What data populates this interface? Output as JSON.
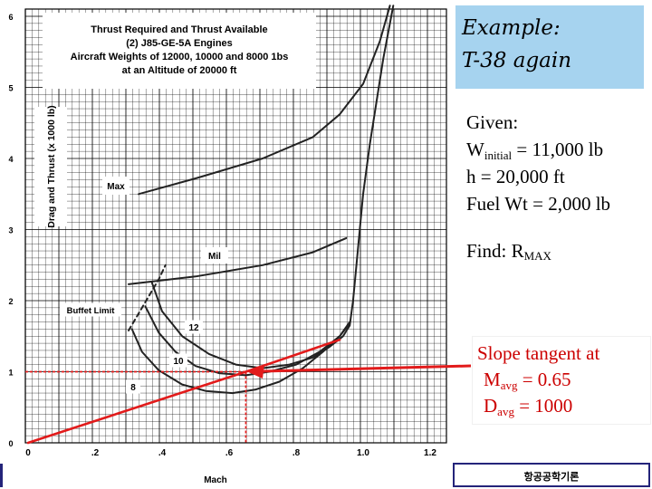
{
  "example": {
    "line1": "Example:",
    "line2": "T-38 again"
  },
  "given": {
    "header": "Given:",
    "w_prefix": "W",
    "w_sub": "initial",
    "w_rest": " = 11,000 lb",
    "h": "h = 20,000 ft",
    "fuel": "Fuel Wt = 2,000 lb"
  },
  "find": {
    "prefix": "Find:   R",
    "sub": "MAX"
  },
  "slope": {
    "line1": "Slope tangent at",
    "m_prefix": "M",
    "m_sub": "avg",
    "m_rest": " = 0.65",
    "d_prefix": "D",
    "d_sub": "avg",
    "d_rest": " = 1000"
  },
  "footer": "항공공학기론",
  "chart_data": {
    "type": "line",
    "title": [
      "Thrust Required and Thrust Available",
      "(2) J85-GE-5A Engines",
      "Aircraft Weights of 12000, 10000 and 8000 1bs",
      "at an Altitude of 20000 ft"
    ],
    "xlabel": "Mach",
    "ylabel": "Drag and Thrust (x 1000 lb)",
    "xlim": [
      0,
      1.25
    ],
    "ylim": [
      0,
      6
    ],
    "x_ticks": [
      "0",
      ".2",
      ".4",
      ".6",
      ".8",
      "1.0",
      "1.2"
    ],
    "y_ticks": [
      "0",
      "1",
      "2",
      "3",
      "4",
      "5",
      "6"
    ],
    "grid": true,
    "labels": {
      "max": "Max",
      "mil": "Mil",
      "buffet": "Buffet Limit",
      "w12": "12",
      "w10": "10",
      "w8": "8"
    },
    "series": [
      {
        "name": "Max",
        "x": [
          0.33,
          0.5,
          0.7,
          0.85,
          0.93,
          1.0,
          1.05,
          1.08
        ],
        "y": [
          3.5,
          3.72,
          4.0,
          4.3,
          4.62,
          5.05,
          5.65,
          6.15
        ],
        "color": "#222222"
      },
      {
        "name": "Mil",
        "x": [
          0.3,
          0.5,
          0.7,
          0.85,
          0.95
        ],
        "y": [
          2.23,
          2.34,
          2.5,
          2.68,
          2.88
        ],
        "color": "#222222"
      },
      {
        "name": "12",
        "x": [
          0.37,
          0.4,
          0.46,
          0.54,
          0.62,
          0.7,
          0.78,
          0.85,
          0.9,
          0.94,
          0.96,
          0.97,
          0.98,
          0.99,
          1.0,
          1.02,
          1.04,
          1.06,
          1.08,
          1.09
        ],
        "y": [
          2.25,
          1.85,
          1.5,
          1.25,
          1.1,
          1.05,
          1.1,
          1.2,
          1.35,
          1.5,
          1.65,
          2.0,
          2.5,
          3.0,
          3.5,
          4.2,
          4.8,
          5.4,
          5.9,
          6.15
        ],
        "color": "#222222"
      },
      {
        "name": "10",
        "x": [
          0.35,
          0.39,
          0.44,
          0.5,
          0.57,
          0.65,
          0.72,
          0.8,
          0.87,
          0.93,
          0.96
        ],
        "y": [
          1.92,
          1.55,
          1.28,
          1.08,
          0.98,
          0.95,
          1.0,
          1.1,
          1.28,
          1.5,
          1.7
        ],
        "color": "#222222"
      },
      {
        "name": "8",
        "x": [
          0.31,
          0.34,
          0.39,
          0.46,
          0.53,
          0.61,
          0.68,
          0.75,
          0.82,
          0.88,
          0.93,
          0.96
        ],
        "y": [
          1.6,
          1.28,
          1.02,
          0.82,
          0.73,
          0.7,
          0.75,
          0.86,
          1.05,
          1.28,
          1.5,
          1.68
        ],
        "color": "#222222"
      },
      {
        "name": "Buffet Limit",
        "x": [
          0.3,
          0.34,
          0.39,
          0.41
        ],
        "y": [
          1.58,
          1.9,
          2.3,
          2.5
        ],
        "color": "#222222",
        "dashed": true
      },
      {
        "name": "Tangent",
        "x": [
          0.0,
          0.65,
          0.93
        ],
        "y": [
          0.0,
          1.0,
          1.45
        ],
        "color": "#e21b1b"
      }
    ],
    "annotations": {
      "mavg": 0.65,
      "davg": 1.0
    }
  }
}
